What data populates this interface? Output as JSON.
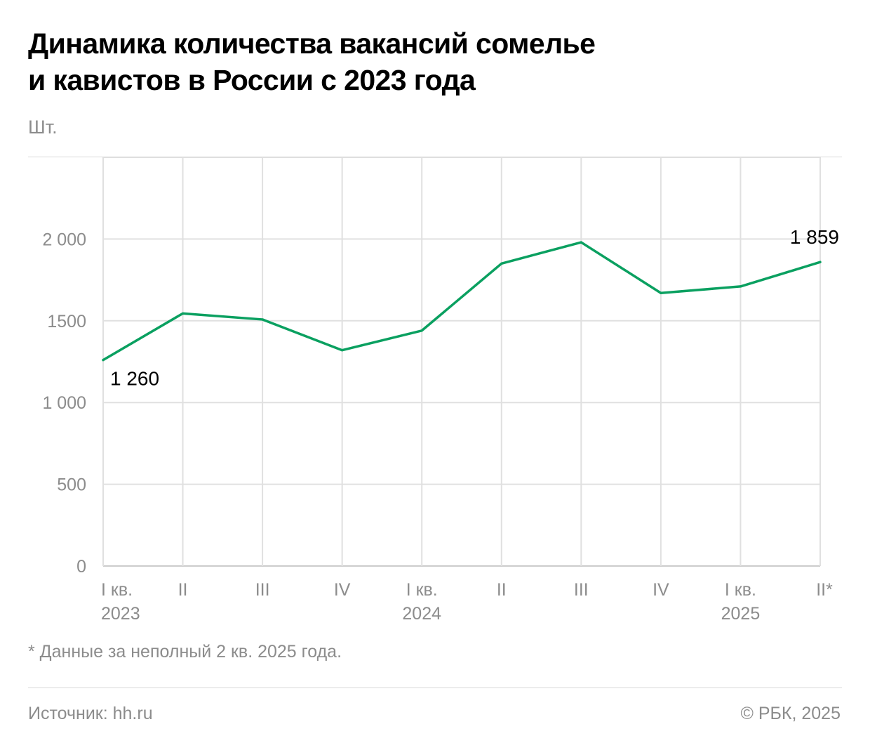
{
  "title_lines": [
    "Динамика количества вакансий сомелье",
    "и кавистов в России с 2023 года"
  ],
  "unit_label": "Шт.",
  "footnote": "* Данные за неполный 2 кв. 2025 года.",
  "source": "Источник: hh.ru",
  "copyright": "© РБК, 2025",
  "colors": {
    "line": "#0aa060",
    "grid": "#e0e0e0",
    "axis": "#cccccc",
    "muted_text": "#8c8c8c"
  },
  "chart_data": {
    "type": "line",
    "title": "Динамика количества вакансий сомелье и кавистов в России с 2023 года",
    "ylabel": "Шт.",
    "xlabel": "",
    "categories": [
      [
        "I кв.",
        "2023"
      ],
      [
        "II"
      ],
      [
        "III"
      ],
      [
        "IV"
      ],
      [
        "I кв.",
        "2024"
      ],
      [
        "II"
      ],
      [
        "III"
      ],
      [
        "IV"
      ],
      [
        "I кв.",
        "2025"
      ],
      [
        "II*"
      ]
    ],
    "series": [
      {
        "values": [
          1260,
          1545,
          1508,
          1320,
          1440,
          1850,
          1980,
          1670,
          1710,
          1859
        ]
      }
    ],
    "ylim": [
      0,
      2500
    ],
    "yticks": [
      0,
      500,
      1000,
      1500,
      2000
    ],
    "ytick_labels": [
      "0",
      "500",
      "1 000",
      "1500",
      "2 000"
    ],
    "data_labels": [
      {
        "index": 0,
        "text": "1 260"
      },
      {
        "index": 9,
        "text": "1 859"
      }
    ],
    "grid": true,
    "legend": "none"
  }
}
